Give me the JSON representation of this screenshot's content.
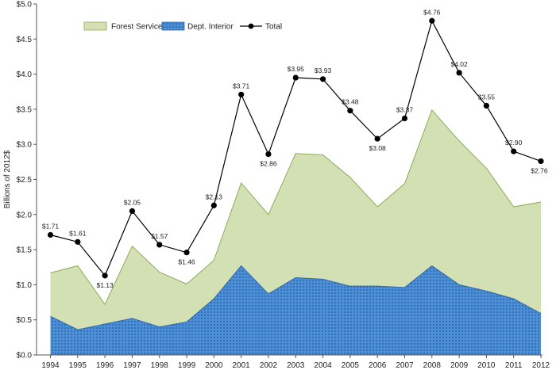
{
  "chart_data": {
    "type": "area",
    "x": [
      "1994",
      "1995",
      "1996",
      "1997",
      "1998",
      "1999",
      "2000",
      "2001",
      "2002",
      "2003",
      "2004",
      "2005",
      "2006",
      "2007",
      "2008",
      "2009",
      "2010",
      "2011",
      "2012"
    ],
    "ylabel": "Billions of 2012$",
    "ylim": [
      0,
      5.0
    ],
    "yticks": [
      "$0.0",
      "$0.5",
      "$1.0",
      "$1.5",
      "$2.0",
      "$2.5",
      "$3.0",
      "$3.5",
      "$4.0",
      "$4.5",
      "$5.0"
    ],
    "grid": false,
    "legend_position": "top-left",
    "series": [
      {
        "name": "Dept. Interior",
        "kind": "area",
        "color": "#4a8fd8",
        "values": [
          0.55,
          0.36,
          0.44,
          0.52,
          0.4,
          0.47,
          0.8,
          1.27,
          0.87,
          1.1,
          1.08,
          0.98,
          0.98,
          0.96,
          1.27,
          1.0,
          0.91,
          0.8,
          0.59
        ]
      },
      {
        "name": "Forest Service",
        "kind": "stacked-area",
        "color": "#d3e0b3",
        "values": [
          0.62,
          0.91,
          0.28,
          1.03,
          0.78,
          0.54,
          0.55,
          1.18,
          1.13,
          1.77,
          1.77,
          1.55,
          1.13,
          1.48,
          2.22,
          2.05,
          1.75,
          1.31,
          1.59
        ]
      },
      {
        "name": "Total",
        "kind": "line",
        "color": "#000000",
        "values": [
          1.71,
          1.61,
          1.13,
          2.05,
          1.57,
          1.46,
          2.13,
          3.71,
          2.86,
          3.95,
          3.93,
          3.48,
          3.08,
          3.37,
          4.76,
          4.02,
          3.55,
          2.9,
          2.76
        ],
        "labels": [
          "$1.71",
          "$1.61",
          "$1.13",
          "$2.05",
          "$1.57",
          "$1.46",
          "$2.13",
          "$3.71",
          "$2.86",
          "$3.95",
          "$3.93",
          "$3.48",
          "$3.08",
          "$3.37",
          "$4.76",
          "$4.02",
          "$3.55",
          "$2.90",
          "$2.76"
        ]
      }
    ]
  }
}
